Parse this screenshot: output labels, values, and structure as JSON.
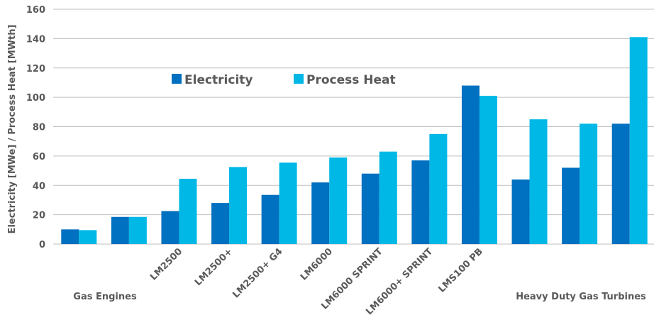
{
  "chart_data": {
    "type": "bar",
    "ylabel": "Electricity [MWe] / Process Heat [MWth]",
    "ylim": [
      0,
      160
    ],
    "yticks": [
      0,
      20,
      40,
      60,
      80,
      100,
      120,
      140,
      160
    ],
    "grid": true,
    "legend_position": "upper-left-inside",
    "categories": [
      "",
      "",
      "LM2500",
      "LM2500+",
      "LM2500+ G4",
      "LM6000",
      "LM6000 SPRINT",
      "LM6000+ SPRINT",
      "LMS100 PB",
      "",
      "",
      ""
    ],
    "group_labels": [
      "Gas Engines",
      "Heavy Duty Gas Turbines"
    ],
    "series": [
      {
        "name": "Electricity",
        "color": "#0070c0",
        "values": [
          10,
          18.5,
          22.5,
          28,
          33.5,
          42,
          48,
          57,
          108,
          44,
          52,
          82
        ]
      },
      {
        "name": "Process Heat",
        "color": "#00b8e6",
        "values": [
          9.5,
          18.5,
          44.5,
          52.5,
          55.5,
          59,
          63,
          75,
          101,
          85,
          82,
          141
        ]
      }
    ]
  }
}
